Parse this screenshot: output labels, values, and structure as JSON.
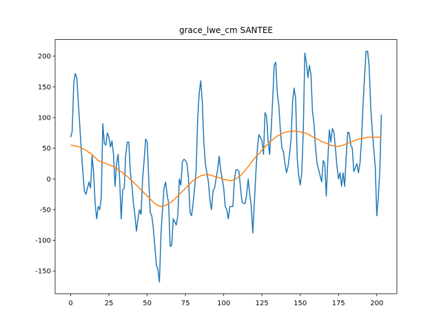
{
  "chart_data": {
    "type": "line",
    "title": "grace_lwe_cm SANTEE",
    "xlim": [
      -10.15,
      213.15
    ],
    "xticks": [
      0,
      25,
      50,
      75,
      100,
      125,
      150,
      175,
      200
    ],
    "ylim": [
      -187,
      227
    ],
    "yticks": [
      -150,
      -100,
      -50,
      0,
      50,
      100,
      150,
      200
    ],
    "series": [
      {
        "color": "#1f77b4",
        "values": [
          68,
          78,
          155,
          172,
          165,
          125,
          85,
          45,
          10,
          -20,
          -25,
          -15,
          -5,
          -15,
          38,
          10,
          -40,
          -65,
          -45,
          -50,
          -30,
          90,
          58,
          55,
          75,
          68,
          52,
          62,
          40,
          -12,
          25,
          40,
          0,
          -65,
          -18,
          -15,
          40,
          60,
          60,
          10,
          -10,
          -40,
          -60,
          -85,
          -65,
          -50,
          -58,
          0,
          30,
          65,
          60,
          0,
          -55,
          -60,
          -80,
          -110,
          -140,
          -148,
          -168,
          -90,
          -50,
          -15,
          -5,
          -25,
          -40,
          -110,
          -108,
          -65,
          -70,
          -75,
          -60,
          0,
          -10,
          28,
          32,
          30,
          25,
          0,
          -55,
          -60,
          -40,
          -15,
          15,
          100,
          140,
          160,
          125,
          60,
          25,
          10,
          -5,
          -35,
          -50,
          -20,
          -15,
          0,
          15,
          37,
          15,
          0,
          -15,
          -45,
          -50,
          -65,
          -45,
          -45,
          -45,
          0,
          15,
          15,
          12,
          -15,
          -38,
          -40,
          -40,
          -25,
          0,
          -25,
          -45,
          -88,
          -40,
          10,
          50,
          72,
          68,
          62,
          40,
          108,
          102,
          62,
          40,
          80,
          130,
          185,
          190,
          140,
          120,
          80,
          50,
          45,
          25,
          10,
          20,
          40,
          65,
          125,
          148,
          130,
          35,
          5,
          -10,
          10,
          80,
          205,
          190,
          165,
          185,
          170,
          110,
          90,
          50,
          25,
          15,
          5,
          -5,
          30,
          25,
          -28,
          30,
          80,
          60,
          82,
          76,
          50,
          20,
          0,
          10,
          -12,
          10,
          -12,
          35,
          76,
          75,
          55,
          50,
          12,
          18,
          25,
          10,
          25,
          60,
          120,
          165,
          208,
          208,
          185,
          120,
          80,
          50,
          20,
          -60,
          -30,
          15,
          105
        ]
      },
      {
        "color": "#ff7f0e",
        "values": [
          55,
          55,
          54,
          54,
          53,
          53,
          52,
          50,
          49,
          48,
          47,
          45,
          43,
          42,
          40,
          37,
          35,
          32,
          30,
          29,
          28,
          27,
          26,
          25,
          24,
          23,
          22,
          21,
          20,
          18,
          17,
          15,
          13,
          12,
          10,
          8,
          6,
          4,
          2,
          -1,
          -3,
          -5,
          -8,
          -10,
          -13,
          -15,
          -18,
          -20,
          -23,
          -25,
          -28,
          -30,
          -33,
          -35,
          -38,
          -40,
          -42,
          -43,
          -44,
          -45,
          -45,
          -44,
          -43,
          -42,
          -40,
          -39,
          -37,
          -35,
          -33,
          -30,
          -28,
          -25,
          -23,
          -20,
          -18,
          -15,
          -13,
          -10,
          -8,
          -5,
          -3,
          -1,
          1,
          2,
          4,
          5,
          6,
          6,
          7,
          7,
          7,
          6,
          6,
          5,
          4,
          3,
          3,
          2,
          1,
          0,
          -1,
          -1,
          -2,
          -2,
          -3,
          -3,
          -2,
          -1,
          0,
          2,
          4,
          6,
          8,
          11,
          14,
          17,
          20,
          23,
          27,
          30,
          33,
          36,
          39,
          41,
          44,
          47,
          50,
          52,
          55,
          57,
          60,
          62,
          64,
          66,
          68,
          70,
          71,
          72,
          74,
          75,
          76,
          76,
          77,
          77,
          78,
          78,
          78,
          78,
          78,
          77,
          77,
          76,
          75,
          75,
          74,
          73,
          72,
          70,
          69,
          67,
          66,
          65,
          64,
          62,
          61,
          60,
          59,
          58,
          57,
          56,
          55,
          54,
          54,
          53,
          53,
          53,
          54,
          54,
          55,
          56,
          57,
          58,
          59,
          60,
          61,
          62,
          63,
          64,
          65,
          65,
          66,
          66,
          67,
          67,
          68,
          68,
          68,
          68,
          68,
          68,
          68,
          68,
          68,
          68
        ]
      }
    ]
  }
}
